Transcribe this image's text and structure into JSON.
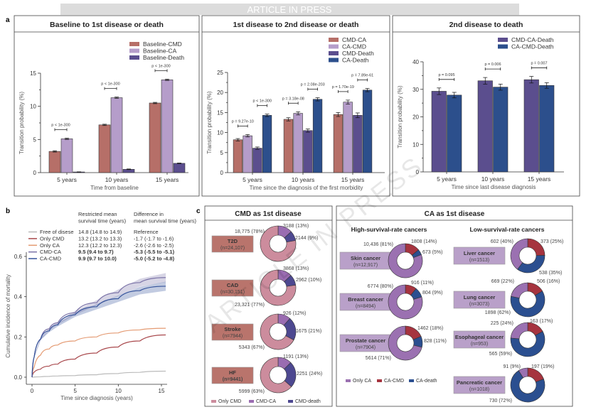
{
  "banner": "ARTICLE IN PRESS",
  "watermark": "ARTICLE IN PRESS",
  "panel_labels": {
    "a": "a",
    "b": "b",
    "c": "c"
  },
  "colors": {
    "cmd": "#b66f68",
    "ca": "#b59dca",
    "death": "#5b4e8e",
    "ca_death": "#2c4f8c",
    "only_cmd": "#cc8c9d",
    "cmd_ca": "#9a6cb1",
    "cmd_death": "#4d4890",
    "only_ca": "#9b71b1",
    "ca_cmd": "#a6343f",
    "ca_death_donut": "#2b4f90",
    "free": "#bbbbbb",
    "only_cmd_line": "#a8474b",
    "only_ca_line": "#e49a72",
    "cmd_ca_line": "#7c74a8",
    "ca_cmd_line": "#34529a"
  },
  "chart_data": [
    {
      "type": "bar",
      "title": "Baseline to 1st disease or death",
      "xlabel": "Time from baseline",
      "ylabel": "Transition probability (%)",
      "ylim": [
        0,
        15
      ],
      "yticks": [
        "0",
        "5",
        "10",
        "15"
      ],
      "categories": [
        "5 years",
        "10 years",
        "15 years"
      ],
      "legend": "top-right",
      "series": [
        {
          "name": "Baseline-CMD",
          "color": "#b66f68",
          "values": [
            3.2,
            7.2,
            10.5
          ],
          "error": [
            0.1,
            0.1,
            0.1
          ]
        },
        {
          "name": "Baseline-CA",
          "color": "#b59dca",
          "values": [
            5.1,
            11.3,
            14.0
          ],
          "error": [
            0.1,
            0.1,
            0.1
          ]
        },
        {
          "name": "Baseline-Death",
          "color": "#5b4e8e",
          "values": [
            0.1,
            0.5,
            1.4
          ],
          "error": [
            0.02,
            0.05,
            0.05
          ]
        }
      ],
      "annotations": [
        {
          "category": 0,
          "pair": [
            0,
            1
          ],
          "text": "p < 1e-300"
        },
        {
          "category": 1,
          "pair": [
            0,
            1
          ],
          "text": "p < 1e-300"
        },
        {
          "category": 2,
          "pair": [
            0,
            1
          ],
          "text": "p < 1e-300"
        }
      ]
    },
    {
      "type": "bar",
      "title": "1st disease to 2nd disease or death",
      "xlabel": "Time since the diagnosis of the first morbidity",
      "ylabel": "Transition probability (%)",
      "ylim": [
        0,
        25
      ],
      "yticks": [
        "0",
        "5",
        "10",
        "15",
        "20",
        "25"
      ],
      "categories": [
        "5 years",
        "10 years",
        "15 years"
      ],
      "legend": "top-right",
      "series": [
        {
          "name": "CMD-CA",
          "color": "#b66f68",
          "values": [
            8.2,
            13.3,
            14.5
          ],
          "error": [
            0.3,
            0.4,
            0.5
          ]
        },
        {
          "name": "CA-CMD",
          "color": "#b59dca",
          "values": [
            9.2,
            14.8,
            17.6
          ],
          "error": [
            0.3,
            0.4,
            0.5
          ]
        },
        {
          "name": "CMD-Death",
          "color": "#5b4e8e",
          "values": [
            6.1,
            10.5,
            14.3
          ],
          "error": [
            0.3,
            0.4,
            0.6
          ]
        },
        {
          "name": "CA-Death",
          "color": "#2c4f8c",
          "values": [
            14.3,
            18.3,
            20.6
          ],
          "error": [
            0.3,
            0.4,
            0.4
          ]
        }
      ],
      "annotations": [
        {
          "category": 0,
          "pair": [
            0,
            1
          ],
          "text": "p = 9.27e-10"
        },
        {
          "category": 0,
          "pair": [
            2,
            3
          ],
          "text": "p < 1e-300"
        },
        {
          "category": 1,
          "pair": [
            0,
            1
          ],
          "text": "p = 3.18e-08"
        },
        {
          "category": 1,
          "pair": [
            2,
            3
          ],
          "text": "p = 2.08e-203"
        },
        {
          "category": 2,
          "pair": [
            0,
            1
          ],
          "text": "p = 1.70e-19"
        },
        {
          "category": 2,
          "pair": [
            2,
            3
          ],
          "text": "p = 7.89e-61"
        }
      ]
    },
    {
      "type": "bar",
      "title": "2nd disease to death",
      "xlabel": "Time since last disease diagnosis",
      "ylabel": "Transition probability (%)",
      "ylim": [
        0,
        40
      ],
      "yticks": [
        "0",
        "10",
        "20",
        "30",
        "40"
      ],
      "categories": [
        "5 years",
        "10 years",
        "15 years"
      ],
      "legend": "top-right",
      "series": [
        {
          "name": "CMD-CA-Death",
          "color": "#5b4e8e",
          "values": [
            29.3,
            33.1,
            33.5
          ],
          "error": [
            1.2,
            1.2,
            1.2
          ]
        },
        {
          "name": "CA-CMD-Death",
          "color": "#2c4f8c",
          "values": [
            27.9,
            30.8,
            31.4
          ],
          "error": [
            1.0,
            1.1,
            1.0
          ]
        }
      ],
      "annotations": [
        {
          "category": 0,
          "pair": [
            0,
            1
          ],
          "text": "p = 0.095"
        },
        {
          "category": 1,
          "pair": [
            0,
            1
          ],
          "text": "p = 0.006"
        },
        {
          "category": 2,
          "pair": [
            0,
            1
          ],
          "text": "p = 0.007"
        }
      ]
    },
    {
      "type": "line",
      "xlabel": "Time since diagnosis (years)",
      "ylabel": "Cumulative incidence of mortality",
      "xlim": [
        0,
        15.5
      ],
      "ylim": [
        0,
        0.6
      ],
      "xticks": [
        "0",
        "5",
        "10",
        "15"
      ],
      "yticks": [
        "0.0",
        "0.2",
        "0.4",
        "0.6"
      ],
      "x": [
        0,
        0.25,
        1,
        2,
        3,
        5,
        7.5,
        10,
        12.5,
        15.5
      ],
      "table_headers": [
        "Restricted mean survival time (years)",
        "Difference in mean survival time (years)"
      ],
      "table_header_lines": [
        [
          "Restricted mean",
          "survival time (years)"
        ],
        [
          "Difference in",
          "mean survival time (years)"
        ]
      ],
      "series": [
        {
          "name": "Free of disese",
          "color": "#bbbbbb",
          "values": [
            0,
            0.001,
            0.002,
            0.004,
            0.006,
            0.008,
            0.012,
            0.018,
            0.024,
            0.03
          ],
          "rmst": "14.8 (14.8 to 14.9)",
          "diff": "Reference",
          "bold": false
        },
        {
          "name": "Only CMD",
          "color": "#a8474b",
          "values": [
            0,
            0.025,
            0.04,
            0.055,
            0.065,
            0.09,
            0.12,
            0.15,
            0.18,
            0.21
          ],
          "rmst": "13.2 (13.2 to 13.3)",
          "diff": "-1.7 (-1.7 to -1.6)",
          "bold": false
        },
        {
          "name": "Only CA",
          "color": "#e49a72",
          "values": [
            0,
            0.05,
            0.11,
            0.14,
            0.16,
            0.18,
            0.2,
            0.22,
            0.235,
            0.243
          ],
          "rmst": "12.3 (12.2 to 12.3)",
          "diff": "-2.6 (-2.6 to -2.5)",
          "bold": false
        },
        {
          "name": "CMD-CA",
          "color": "#7c74a8",
          "values": [
            0,
            0.1,
            0.19,
            0.24,
            0.27,
            0.32,
            0.37,
            0.42,
            0.47,
            0.495
          ],
          "rmst": "9.5 (9.4 to 9.7)",
          "diff": "-5.3 (-5.5 to -5.1)",
          "bold": true
        },
        {
          "name": "CA-CMD",
          "color": "#34529a",
          "values": [
            0,
            0.1,
            0.19,
            0.23,
            0.26,
            0.31,
            0.35,
            0.39,
            0.43,
            0.452
          ],
          "rmst": "9.9 (9.7 to 10.0)",
          "diff": "-5.0 (-5.2 to -4.8)",
          "bold": true
        }
      ]
    },
    {
      "type": "pie",
      "title": "CMD as 1st disease",
      "legend_entries": [
        {
          "name": "Only CMD",
          "color": "#cc8c9d"
        },
        {
          "name": "CMD-CA",
          "color": "#9a6cb1"
        },
        {
          "name": "CMD-death",
          "color": "#4d4890"
        }
      ],
      "donuts": [
        {
          "name": "T2D",
          "n": "(n=24,107)",
          "bold_n": false,
          "slices": [
            {
              "label": "3188 (13%)",
              "value": 3188
            },
            {
              "label": "2144 (9%)",
              "value": 2144
            },
            {
              "label": "18,775 (78%)",
              "value": 18775
            }
          ]
        },
        {
          "name": "CAD",
          "n": "(n=30,151)",
          "bold_n": false,
          "slices": [
            {
              "label": "3868 (13%)",
              "value": 3868
            },
            {
              "label": "2962 (10%)",
              "value": 2962
            },
            {
              "label": "23,321 (77%)",
              "value": 23321
            }
          ]
        },
        {
          "name": "Stroke",
          "n": "(n=7944)",
          "bold_n": false,
          "slices": [
            {
              "label": "926 (12%)",
              "value": 926
            },
            {
              "label": "1675 (21%)",
              "value": 1675
            },
            {
              "label": "5343 (67%)",
              "value": 5343
            }
          ]
        },
        {
          "name": "HF",
          "n": "(n=9441)",
          "bold_n": true,
          "slices": [
            {
              "label": "1191 (13%)",
              "value": 1191
            },
            {
              "label": "2251 (24%)",
              "value": 2251
            },
            {
              "label": "5999 (63%)",
              "value": 5999
            }
          ]
        }
      ]
    },
    {
      "type": "pie",
      "title": "CA as 1st disease",
      "groups": [
        "High-survival-rate cancers",
        "Low-survival-rate cancers"
      ],
      "legend_entries": [
        {
          "name": "Only CA",
          "color": "#9b71b1"
        },
        {
          "name": "CA-CMD",
          "color": "#a6343f"
        },
        {
          "name": "CA-death",
          "color": "#2b4f90"
        }
      ],
      "donuts": [
        {
          "group": 0,
          "name": "Skin cancer",
          "n": "(n=12,917)",
          "slices": [
            {
              "label": "1808 (14%)",
              "value": 1808
            },
            {
              "label": "673 (5%)",
              "value": 673
            },
            {
              "label": "10,436 (81%)",
              "value": 10436
            }
          ]
        },
        {
          "group": 0,
          "name": "Breast cancer",
          "n": "(n=8494)",
          "slices": [
            {
              "label": "916 (11%)",
              "value": 916
            },
            {
              "label": "804 (9%)",
              "value": 804
            },
            {
              "label": "6774 (80%)",
              "value": 6774
            }
          ]
        },
        {
          "group": 0,
          "name": "Prostate cancer",
          "n": "(n=7904)",
          "slices": [
            {
              "label": "1462 (18%)",
              "value": 1462
            },
            {
              "label": "828 (11%)",
              "value": 828
            },
            {
              "label": "5614 (71%)",
              "value": 5614
            }
          ]
        },
        {
          "group": 1,
          "name": "Liver cancer",
          "n": "(n=1513)",
          "slices": [
            {
              "label": "373 (25%)",
              "value": 373
            },
            {
              "label": "538 (35%)",
              "value": 538
            },
            {
              "label": "602 (40%)",
              "value": 602
            }
          ]
        },
        {
          "group": 1,
          "name": "Lung cancer",
          "n": "(n=3073)",
          "slices": [
            {
              "label": "506 (16%)",
              "value": 506
            },
            {
              "label": "1898 (62%)",
              "value": 1898
            },
            {
              "label": "669 (22%)",
              "value": 669
            }
          ]
        },
        {
          "group": 1,
          "name": "Esophageal cancer",
          "n": "(n=953)",
          "slices": [
            {
              "label": "163 (17%)",
              "value": 163
            },
            {
              "label": "565 (59%)",
              "value": 565
            },
            {
              "label": "225 (24%)",
              "value": 225
            }
          ]
        },
        {
          "group": 1,
          "name": "Pancreatic cancer",
          "n": "(n=1018)",
          "slices": [
            {
              "label": "197 (19%)",
              "value": 197
            },
            {
              "label": "730 (72%)",
              "value": 730
            },
            {
              "label": "91 (9%)",
              "value": 91
            }
          ]
        }
      ]
    }
  ]
}
